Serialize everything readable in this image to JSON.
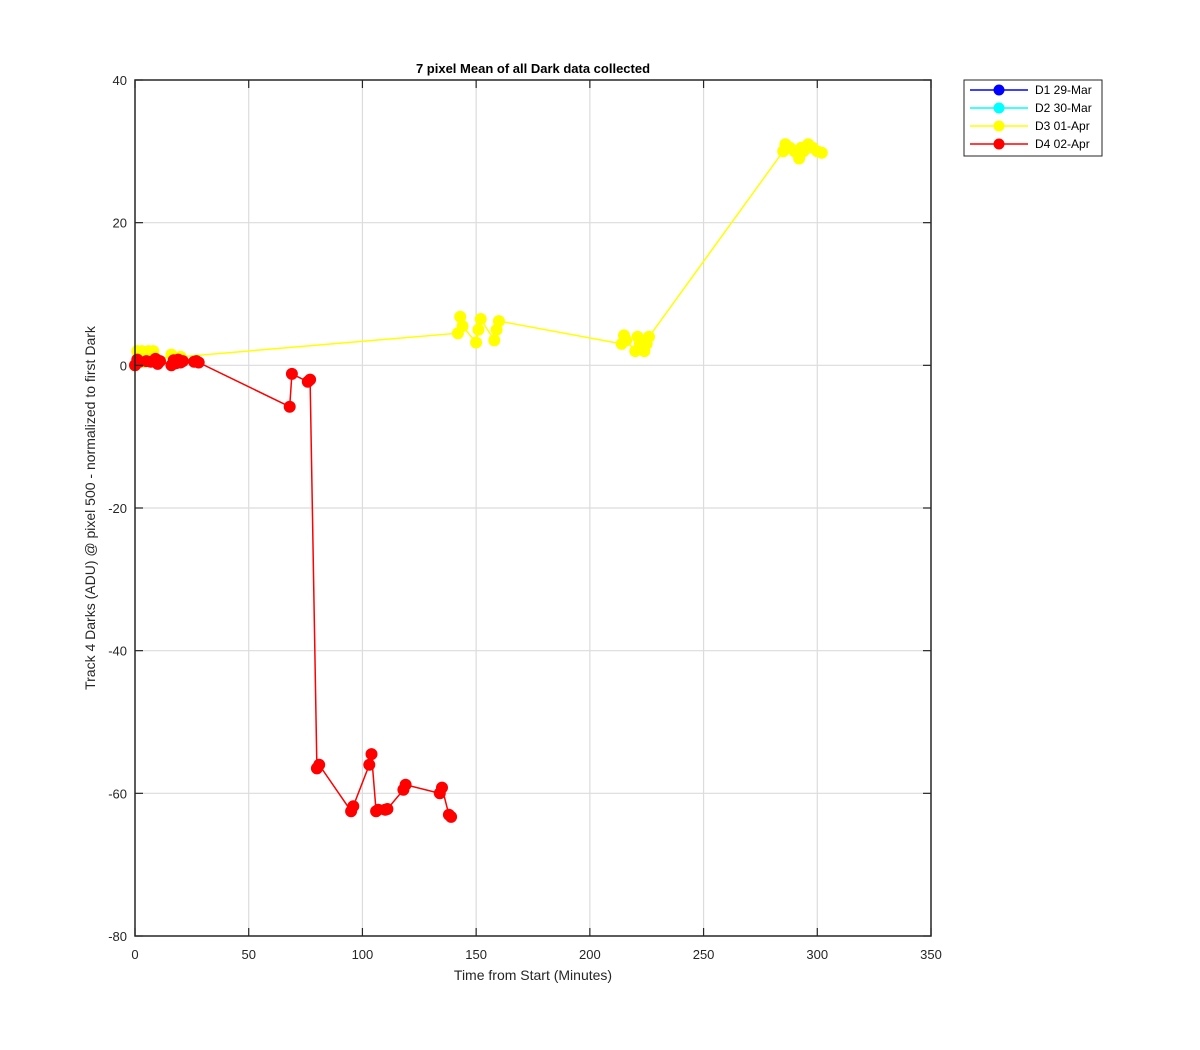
{
  "chart_data": {
    "type": "line",
    "title": "7 pixel Mean of all Dark data collected",
    "xlabel": "Time from Start (Minutes)",
    "ylabel": "Track 4 Darks (ADU) @ pixel 500 - normalized to first Dark",
    "xlim": [
      0,
      350
    ],
    "ylim": [
      -80,
      40
    ],
    "xticks": [
      0,
      50,
      100,
      150,
      200,
      250,
      300,
      350
    ],
    "yticks": [
      -80,
      -60,
      -40,
      -20,
      0,
      20,
      40
    ],
    "grid": true,
    "legend_position": "outside-top-right",
    "series": [
      {
        "name": "D1 29-Mar",
        "color": "#0000ff",
        "x": [],
        "y": []
      },
      {
        "name": "D2 30-Mar",
        "color": "#00ffff",
        "x": [],
        "y": []
      },
      {
        "name": "D3 01-Apr",
        "color": "#ffff00",
        "x": [
          0,
          1,
          2,
          3,
          4,
          5,
          6,
          7,
          8,
          9,
          10,
          16,
          18,
          20,
          142,
          143,
          144,
          150,
          151,
          152,
          158,
          159,
          160,
          214,
          215,
          216,
          220,
          221,
          222,
          224,
          225,
          226,
          285,
          286,
          288,
          290,
          292,
          293,
          294,
          296,
          298,
          300,
          302
        ],
        "y": [
          0,
          2,
          1.5,
          2,
          0.5,
          1,
          2,
          1.5,
          2,
          1,
          0.5,
          1.5,
          0.5,
          1.2,
          4.5,
          6.8,
          5.5,
          3.2,
          5,
          6.5,
          3.5,
          5,
          6.2,
          3,
          4.2,
          3.5,
          2,
          4,
          3,
          2,
          3,
          4,
          30,
          31,
          30.5,
          30,
          29,
          30.5,
          30,
          31,
          30.5,
          30,
          29.8
        ]
      },
      {
        "name": "D4 02-Apr",
        "color": "#ff0000",
        "x": [
          0,
          1,
          2,
          5,
          7,
          9,
          10,
          11,
          16,
          17,
          18,
          19,
          20,
          21,
          26,
          27,
          28,
          68,
          69,
          76,
          77,
          80,
          81,
          95,
          96,
          103,
          104,
          106,
          107,
          110,
          111,
          118,
          119,
          134,
          135,
          138,
          139
        ],
        "y": [
          0,
          0.8,
          0.5,
          0.6,
          0.5,
          0.9,
          0.2,
          0.6,
          0,
          0.7,
          0.3,
          0.8,
          0.4,
          0.6,
          0.5,
          0.6,
          0.4,
          -5.8,
          -1.2,
          -2.3,
          -2,
          -56.5,
          -56,
          -62.5,
          -61.8,
          -56,
          -54.5,
          -62.5,
          -62.3,
          -62.3,
          -62.2,
          -59.5,
          -58.8,
          -60,
          -59.2,
          -63,
          -63.3
        ]
      }
    ]
  }
}
